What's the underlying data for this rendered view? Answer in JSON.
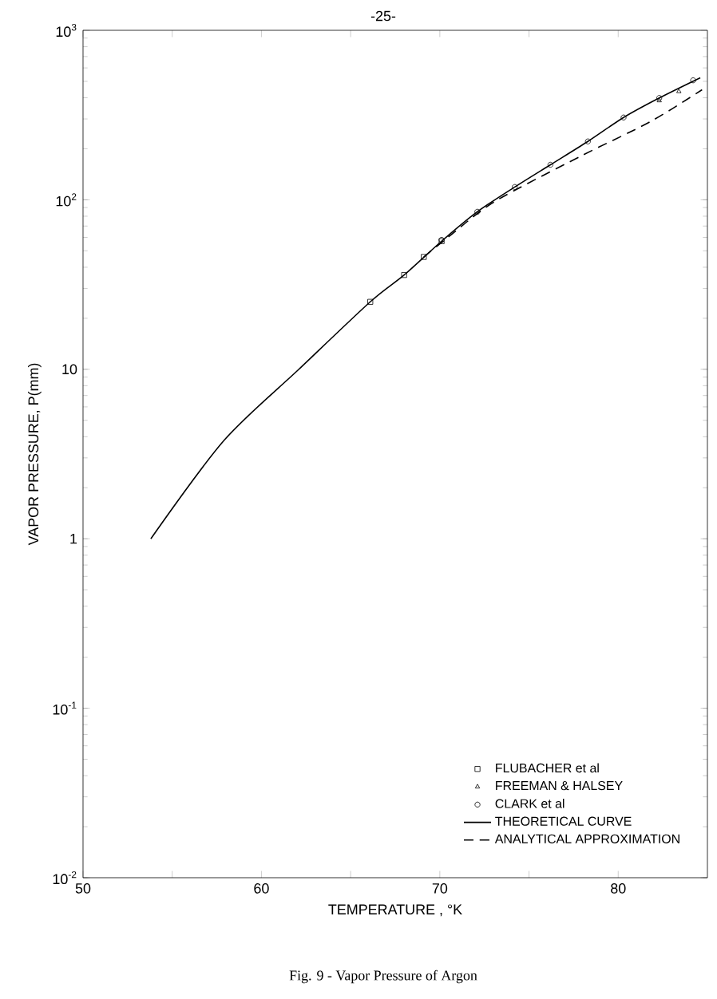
{
  "chart_data": {
    "type": "scatter",
    "xlabel": "TEMPERATURE , °K",
    "ylabel": "VAPOR PRESSURE, P(mm)",
    "annotations": [
      "-25-",
      "Fig. 9 - Vapor Pressure of Argon"
    ],
    "log": "y",
    "legend": "bottom right",
    "xlim": [
      50,
      85
    ],
    "ylim": [
      0.01,
      1000
    ],
    "xticks": [
      50,
      {
        "value": 55,
        "label": null
      },
      60,
      {
        "value": 65,
        "label": null
      },
      70,
      {
        "value": 75,
        "label": null
      },
      80
    ],
    "yticks": [
      {
        "value": 0.01,
        "label": "10$^{-2}$"
      },
      {
        "value": 0.1,
        "label": "10$^{-1}$"
      },
      1,
      10,
      {
        "value": 100,
        "label": "10$^{2}$"
      },
      {
        "value": 1000,
        "label": "10$^{3}$"
      }
    ],
    "series": [
      {
        "name": "FLUBACHER et al",
        "marker": "square",
        "color": "#000000",
        "x": [
          66.1,
          68.0,
          69.1,
          70.1
        ],
        "values": [
          25,
          36,
          46,
          57
        ]
      },
      {
        "name": "FREEMAN & HALSEY",
        "marker": "triangle",
        "color": "#000000",
        "x": [
          82.3,
          83.4
        ],
        "values": [
          385,
          436
        ]
      },
      {
        "name": "CLARK et al",
        "marker": "circle",
        "color": "#000000",
        "x": [
          70.1,
          72.1,
          74.2,
          76.2,
          78.3,
          80.3,
          82.3,
          84.2
        ],
        "values": [
          58,
          85,
          119,
          161,
          221,
          306,
          399,
          507
        ]
      },
      {
        "name": "THEORETICAL CURVE",
        "type": "line",
        "line_style": "solid",
        "color": "#000000",
        "x": [
          53.8,
          57.9,
          62.1,
          66.1,
          68.0,
          70.1,
          72.1,
          74.2,
          76.2,
          78.3,
          80.3,
          82.3,
          84.6
        ],
        "values": [
          1.0,
          3.8,
          10,
          25,
          36,
          57,
          85,
          119,
          161,
          221,
          306,
          399,
          525
        ]
      },
      {
        "name": "ANALYTICAL APPROXIMATION",
        "type": "line",
        "line_style": "dashed",
        "color": "#000000",
        "x": [
          69.1,
          70.1,
          70.7,
          73.1,
          77.9,
          81.8,
          84.7
        ],
        "values": [
          46,
          56,
          63,
          98,
          181,
          289,
          446
        ]
      }
    ]
  }
}
